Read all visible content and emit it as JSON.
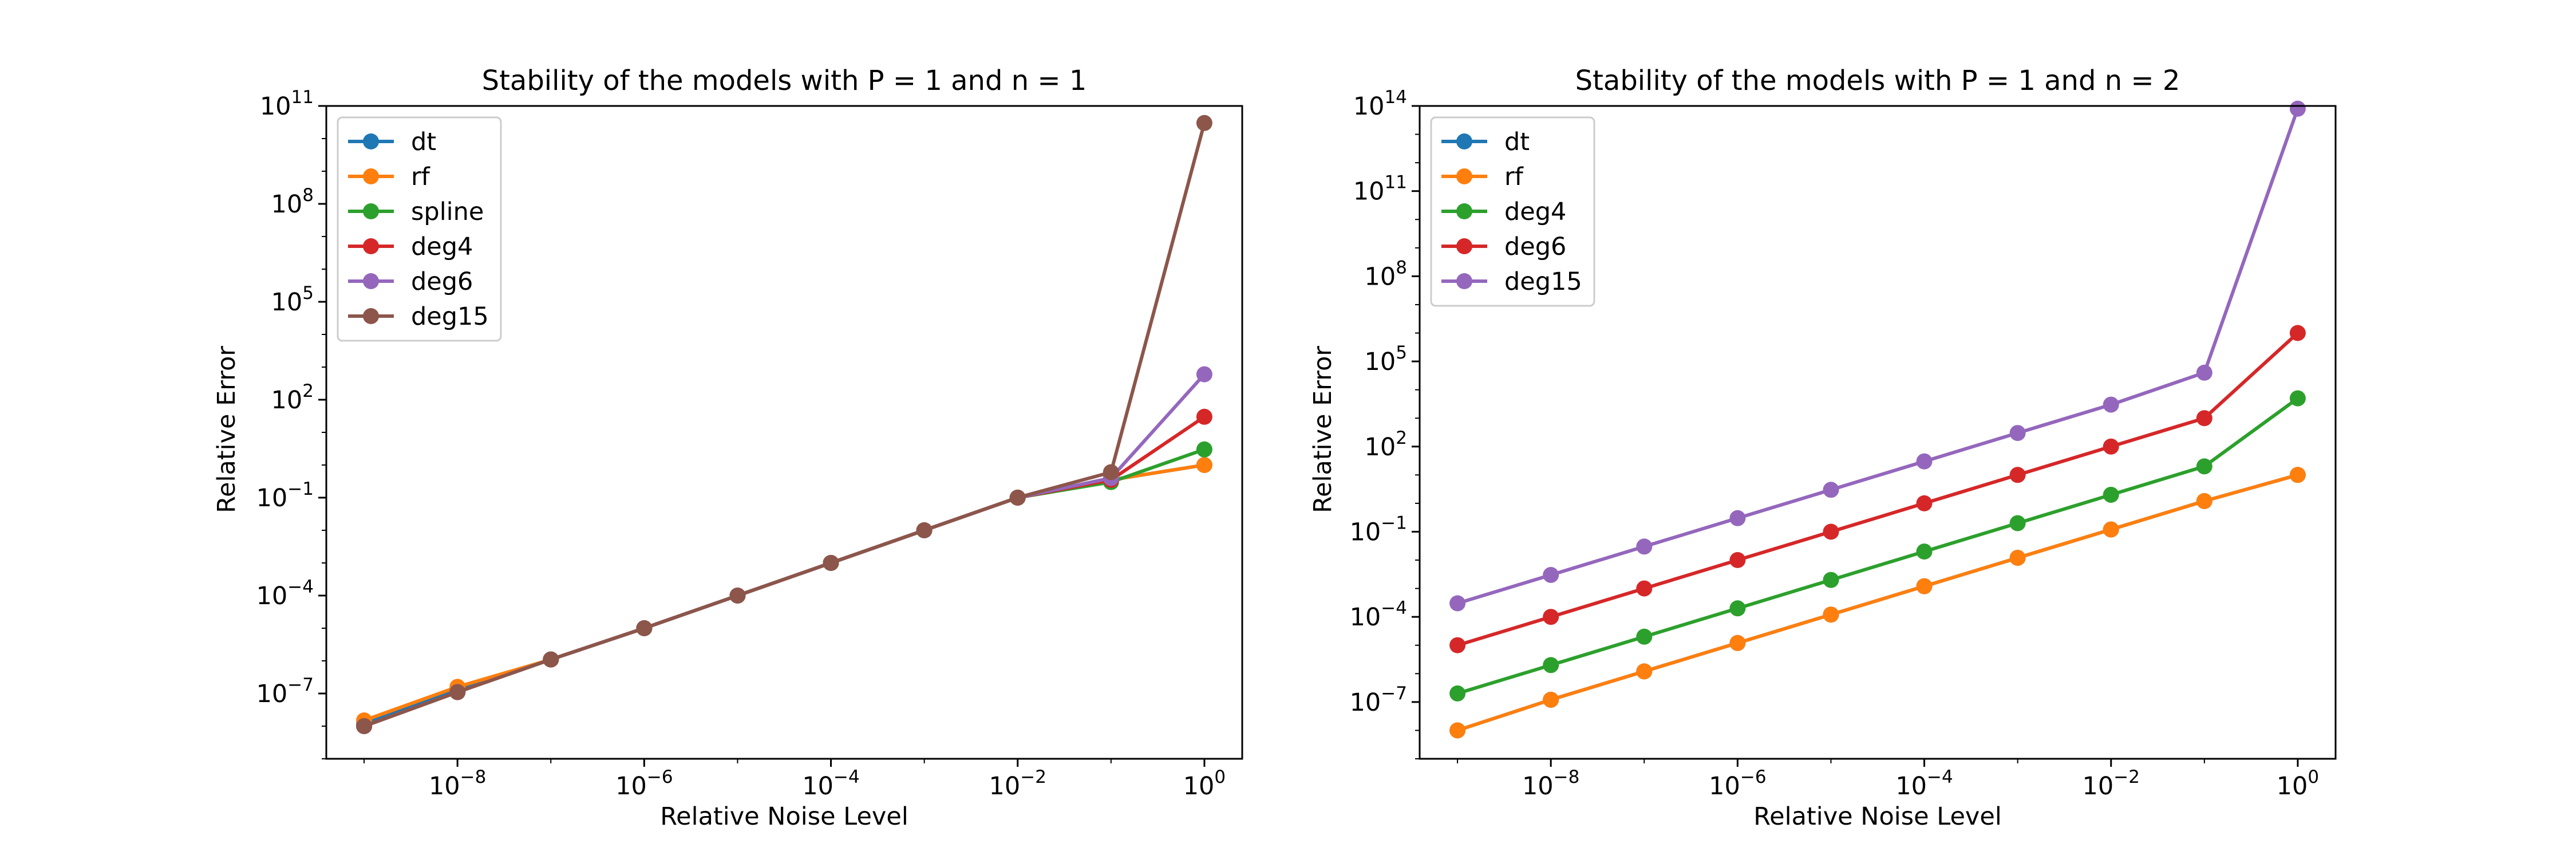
{
  "chart_data": [
    {
      "type": "line",
      "title": "Stability of the models with P = 1 and n = 1",
      "xlabel": "Relative Noise Level",
      "ylabel": "Relative Error",
      "xscale": "log",
      "yscale": "log",
      "xlim": [
        1e-09,
        1
      ],
      "ylim": [
        1e-09,
        100000000000.0
      ],
      "xticks": [
        1e-08,
        1e-06,
        0.0001,
        0.01,
        1
      ],
      "yticks": [
        1e-07,
        0.0001,
        0.1,
        100.0,
        100000.0,
        100000000.0,
        100000000000.0
      ],
      "legend_position": "top-left",
      "grid": false,
      "x": [
        1e-09,
        1e-08,
        1e-07,
        1e-06,
        1e-05,
        0.0001,
        0.001,
        0.01,
        0.1,
        1
      ],
      "series": [
        {
          "name": "dt",
          "color": "#1f77b4",
          "values": [
            1.2e-08,
            1.3e-07,
            1.1e-06,
            1e-05,
            0.0001,
            0.001,
            0.01,
            0.1,
            0.35,
            1.0
          ]
        },
        {
          "name": "rf",
          "color": "#ff7f0e",
          "values": [
            1.5e-08,
            1.6e-07,
            1.1e-06,
            1e-05,
            0.0001,
            0.001,
            0.01,
            0.1,
            0.35,
            1.0
          ]
        },
        {
          "name": "spline",
          "color": "#2ca02c",
          "values": [
            1e-08,
            1.1e-07,
            1.1e-06,
            1e-05,
            0.0001,
            0.001,
            0.01,
            0.1,
            0.3,
            3.0
          ]
        },
        {
          "name": "deg4",
          "color": "#d62728",
          "values": [
            1e-08,
            1.1e-07,
            1.1e-06,
            1e-05,
            0.0001,
            0.001,
            0.01,
            0.1,
            0.35,
            30
          ]
        },
        {
          "name": "deg6",
          "color": "#9467bd",
          "values": [
            1e-08,
            1.1e-07,
            1.1e-06,
            1e-05,
            0.0001,
            0.001,
            0.01,
            0.1,
            0.4,
            600
          ]
        },
        {
          "name": "deg15",
          "color": "#8c564b",
          "values": [
            1e-08,
            1.1e-07,
            1.1e-06,
            1e-05,
            0.0001,
            0.001,
            0.01,
            0.1,
            0.6,
            30000000000.0
          ]
        }
      ]
    },
    {
      "type": "line",
      "title": "Stability of the models with P = 1 and n = 2",
      "xlabel": "Relative Noise Level",
      "ylabel": "Relative Error",
      "xscale": "log",
      "yscale": "log",
      "xlim": [
        1e-09,
        1
      ],
      "ylim": [
        1e-09,
        100000000000000.0
      ],
      "xticks": [
        1e-08,
        1e-06,
        0.0001,
        0.01,
        1
      ],
      "yticks": [
        1e-07,
        0.0001,
        0.1,
        100.0,
        100000.0,
        100000000.0,
        100000000000.0,
        100000000000000.0
      ],
      "legend_position": "top-left",
      "grid": false,
      "x": [
        1e-09,
        1e-08,
        1e-07,
        1e-06,
        1e-05,
        0.0001,
        0.001,
        0.01,
        0.1,
        1
      ],
      "series": [
        {
          "name": "dt",
          "color": "#1f77b4",
          "values": [
            1e-08,
            1.2e-07,
            1.2e-06,
            1.2e-05,
            0.00012,
            0.0012,
            0.012,
            0.12,
            1.2,
            10
          ]
        },
        {
          "name": "rf",
          "color": "#ff7f0e",
          "values": [
            1e-08,
            1.2e-07,
            1.2e-06,
            1.2e-05,
            0.00012,
            0.0012,
            0.012,
            0.12,
            1.2,
            10
          ]
        },
        {
          "name": "deg4",
          "color": "#2ca02c",
          "values": [
            2e-07,
            2e-06,
            2e-05,
            0.0002,
            0.002,
            0.02,
            0.2,
            2.0,
            20,
            5000
          ]
        },
        {
          "name": "deg6",
          "color": "#d62728",
          "values": [
            1e-05,
            0.0001,
            0.001,
            0.01,
            0.1,
            1.0,
            10,
            100,
            1000,
            1000000.0
          ]
        },
        {
          "name": "deg15",
          "color": "#9467bd",
          "values": [
            0.0003,
            0.003,
            0.03,
            0.3,
            3,
            30,
            300,
            3000,
            40000.0,
            80000000000000.0
          ]
        }
      ]
    }
  ]
}
